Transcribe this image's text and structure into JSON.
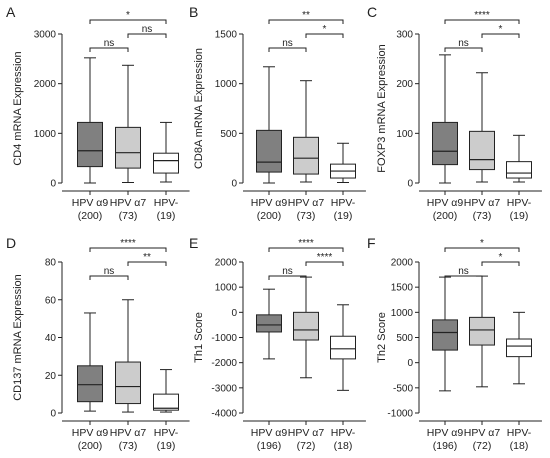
{
  "chart_data": [
    {
      "type": "box",
      "panel": "A",
      "ylabel": "CD4 mRNA Expression",
      "ylim": [
        0,
        3000
      ],
      "yticks": [
        0,
        1000,
        2000,
        3000
      ],
      "categories": [
        [
          "HPV α9",
          "(200)"
        ],
        [
          "HPV α7",
          "(73)"
        ],
        [
          "HPV-",
          "(19)"
        ]
      ],
      "boxes": [
        {
          "min": 0,
          "q1": 330,
          "median": 650,
          "q3": 1220,
          "max": 2520,
          "color": "#808080"
        },
        {
          "min": 10,
          "q1": 300,
          "median": 610,
          "q3": 1120,
          "max": 2370,
          "color": "#cccccc"
        },
        {
          "min": 20,
          "q1": 200,
          "median": 450,
          "q3": 600,
          "max": 1220,
          "color": "#ffffff"
        }
      ],
      "significance": [
        {
          "from": 0,
          "to": 1,
          "label": "ns",
          "level": 0
        },
        {
          "from": 1,
          "to": 2,
          "label": "ns",
          "level": 1
        },
        {
          "from": 0,
          "to": 2,
          "label": "*",
          "level": 2
        }
      ]
    },
    {
      "type": "box",
      "panel": "B",
      "ylabel": "CD8A mRNA Expression",
      "ylim": [
        0,
        1500
      ],
      "yticks": [
        0,
        500,
        1000,
        1500
      ],
      "categories": [
        [
          "HPV α9",
          "(200)"
        ],
        [
          "HPV α7",
          "(73)"
        ],
        [
          "HPV-",
          "(19)"
        ]
      ],
      "boxes": [
        {
          "min": 0,
          "q1": 110,
          "median": 210,
          "q3": 530,
          "max": 1170,
          "color": "#808080"
        },
        {
          "min": 10,
          "q1": 90,
          "median": 250,
          "q3": 460,
          "max": 1030,
          "color": "#cccccc"
        },
        {
          "min": 5,
          "q1": 50,
          "median": 120,
          "q3": 190,
          "max": 400,
          "color": "#ffffff"
        }
      ],
      "significance": [
        {
          "from": 0,
          "to": 1,
          "label": "ns",
          "level": 0
        },
        {
          "from": 1,
          "to": 2,
          "label": "*",
          "level": 1
        },
        {
          "from": 0,
          "to": 2,
          "label": "**",
          "level": 2
        }
      ]
    },
    {
      "type": "box",
      "panel": "C",
      "ylabel": "FOXP3 mRNA Expression",
      "ylim": [
        0,
        300
      ],
      "yticks": [
        0,
        100,
        200,
        300
      ],
      "categories": [
        [
          "HPV α9",
          "(200)"
        ],
        [
          "HPV α7",
          "(73)"
        ],
        [
          "HPV-",
          "(19)"
        ]
      ],
      "boxes": [
        {
          "min": 0,
          "q1": 37,
          "median": 64,
          "q3": 122,
          "max": 258,
          "color": "#808080"
        },
        {
          "min": 2,
          "q1": 27,
          "median": 47,
          "q3": 104,
          "max": 222,
          "color": "#cccccc"
        },
        {
          "min": 2,
          "q1": 10,
          "median": 20,
          "q3": 43,
          "max": 96,
          "color": "#ffffff"
        }
      ],
      "significance": [
        {
          "from": 0,
          "to": 1,
          "label": "ns",
          "level": 0
        },
        {
          "from": 1,
          "to": 2,
          "label": "*",
          "level": 1
        },
        {
          "from": 0,
          "to": 2,
          "label": "****",
          "level": 2
        }
      ]
    },
    {
      "type": "box",
      "panel": "D",
      "ylabel": "CD137 mRNA  Expression",
      "ylim": [
        0,
        80
      ],
      "yticks": [
        0,
        20,
        40,
        60,
        80
      ],
      "categories": [
        [
          "HPV α9",
          "(200)"
        ],
        [
          "HPV α7",
          "(73)"
        ],
        [
          "HPV-",
          "(19)"
        ]
      ],
      "boxes": [
        {
          "min": 1,
          "q1": 6,
          "median": 15,
          "q3": 25,
          "max": 53,
          "color": "#808080"
        },
        {
          "min": 0.5,
          "q1": 5,
          "median": 14,
          "q3": 27,
          "max": 60,
          "color": "#cccccc"
        },
        {
          "min": 0.5,
          "q1": 1.5,
          "median": 2.5,
          "q3": 10,
          "max": 23,
          "color": "#ffffff"
        }
      ],
      "significance": [
        {
          "from": 0,
          "to": 1,
          "label": "ns",
          "level": 0
        },
        {
          "from": 1,
          "to": 2,
          "label": "**",
          "level": 1
        },
        {
          "from": 0,
          "to": 2,
          "label": "****",
          "level": 2
        }
      ]
    },
    {
      "type": "box",
      "panel": "E",
      "ylabel": "Th1 Score",
      "ylim": [
        -4000,
        2000
      ],
      "yticks": [
        -4000,
        -3000,
        -2000,
        -1000,
        0,
        1000,
        2000
      ],
      "categories": [
        [
          "HPV α9",
          "(196)"
        ],
        [
          "HPV α7",
          "(72)"
        ],
        [
          "HPV-",
          "(18)"
        ]
      ],
      "boxes": [
        {
          "min": -1850,
          "q1": -780,
          "median": -500,
          "q3": -100,
          "max": 920,
          "color": "#808080"
        },
        {
          "min": -2600,
          "q1": -1100,
          "median": -700,
          "q3": 0,
          "max": 1400,
          "color": "#cccccc"
        },
        {
          "min": -3100,
          "q1": -1850,
          "median": -1450,
          "q3": -950,
          "max": 300,
          "color": "#ffffff"
        }
      ],
      "significance": [
        {
          "from": 0,
          "to": 1,
          "label": "ns",
          "level": 0
        },
        {
          "from": 1,
          "to": 2,
          "label": "****",
          "level": 1
        },
        {
          "from": 0,
          "to": 2,
          "label": "****",
          "level": 2
        }
      ]
    },
    {
      "type": "box",
      "panel": "F",
      "ylabel": "Th2 Score",
      "ylim": [
        -1000,
        2000
      ],
      "yticks": [
        -1000,
        -500,
        0,
        500,
        1000,
        1500,
        2000
      ],
      "categories": [
        [
          "HPV α9",
          "(196)"
        ],
        [
          "HPV α7",
          "(72)"
        ],
        [
          "HPV-",
          "(18)"
        ]
      ],
      "boxes": [
        {
          "min": -560,
          "q1": 250,
          "median": 600,
          "q3": 850,
          "max": 1700,
          "color": "#808080"
        },
        {
          "min": -480,
          "q1": 350,
          "median": 650,
          "q3": 900,
          "max": 1720,
          "color": "#cccccc"
        },
        {
          "min": -420,
          "q1": 120,
          "median": 330,
          "q3": 470,
          "max": 1000,
          "color": "#ffffff"
        }
      ],
      "significance": [
        {
          "from": 0,
          "to": 1,
          "label": "ns",
          "level": 0
        },
        {
          "from": 1,
          "to": 2,
          "label": "*",
          "level": 1
        },
        {
          "from": 0,
          "to": 2,
          "label": "*",
          "level": 2
        }
      ]
    }
  ]
}
